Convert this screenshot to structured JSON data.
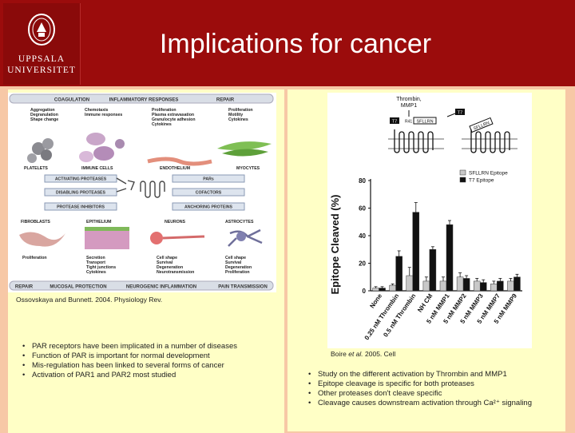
{
  "header": {
    "title": "Implications for cancer",
    "logo_line1": "UPPSALA",
    "logo_line2": "UNIVERSITET"
  },
  "colors": {
    "header": "#9b0c0c",
    "background": "#f7c8a6",
    "panel": "#ffffc6"
  },
  "left": {
    "citation": "Ossovskaya and Bunnett. 2004. Physiology Rev.",
    "bullets": [
      "PAR receptors have been implicated in a number of diseases",
      "Function of PAR is important for normal development",
      "Mis-regulation has been linked to several forms of cancer",
      "Activation of PAR1 and PAR2 most studied"
    ],
    "schematic": {
      "top_bar": [
        "COAGULATION",
        "INFLAMMATORY RESPONSES",
        "REPAIR"
      ],
      "col1": [
        "Aggregation",
        "Degranulation",
        "Shape change"
      ],
      "col2": [
        "Chemotaxis",
        "Immune responses"
      ],
      "col3": [
        "Proliferation",
        "Plasma extravasation",
        "Granulocyte adhesion",
        "Cytokines"
      ],
      "col4": [
        "Proliferation",
        "Motility",
        "Cytokines"
      ],
      "cells_top": [
        "PLATELETS",
        "IMMUNE CELLS",
        "ENDOTHELIUM",
        "MYOCYTES"
      ],
      "boxes_left": [
        "ACTIVATING PROTEASES",
        "DISABLING PROTEASES",
        "PROTEASE INHIBITORS"
      ],
      "boxes_right": [
        "PARs",
        "COFACTORS",
        "ANCHORING PROTEINS"
      ],
      "cells_bottom": [
        "FIBROBLASTS",
        "EPITHELIUM",
        "NEURONS",
        "ASTROCYTES"
      ],
      "b1": [
        "Proliferation"
      ],
      "b2": [
        "Secretion",
        "Transport",
        "Tight junctions",
        "Cytokines"
      ],
      "b3": [
        "Cell shape",
        "Survival",
        "Degeneration",
        "Neurotransmission"
      ],
      "b4": [
        "Cell shape",
        "Survival",
        "Degeneration",
        "Proliferation"
      ],
      "bottom_bar": [
        "REPAIR",
        "MUCOSAL PROTECTION",
        "NEUROGENIC INFLAMMATION",
        "PAIN TRANSMISSION"
      ]
    }
  },
  "right": {
    "citation_pre": "Boire ",
    "citation_italic": "et al.",
    "citation_post": " 2005. Cell",
    "bullets": [
      "Study on the different activation by Thrombin and MMP1",
      "Epitope cleavage is specific for both proteases",
      "Other proteases don't cleave specific",
      "Cleavage causes downstream activation through Ca²⁺ signaling"
    ],
    "diagram": {
      "enzyme_label_1": "Thrombin,",
      "enzyme_label_2": "MMP1",
      "tag_t7": "T7",
      "tag_seq": "SFLLRN",
      "tag_r41": "R41"
    }
  },
  "chart_data": {
    "type": "bar",
    "ylabel": "Epitope Cleaved (%)",
    "ylim": [
      0,
      80
    ],
    "yticks": [
      0,
      20,
      40,
      60,
      80
    ],
    "categories": [
      "None",
      "0.25 nM Thrombin",
      "0.5 nM Thrombin",
      "NH CM",
      "5 nM MMP1",
      "5 nM MMP2",
      "5 nM MMP3",
      "5 nM MMP7",
      "5 nM MMP9"
    ],
    "series": [
      {
        "name": "SFLLRN Epitope",
        "color": "#c8c8c8",
        "values": [
          2,
          4,
          11,
          7,
          7,
          10,
          7,
          5,
          7
        ]
      },
      {
        "name": "T7 Epitope",
        "color": "#111111",
        "values": [
          2,
          25,
          57,
          30,
          48,
          9,
          6,
          7,
          10
        ]
      }
    ],
    "errors": [
      [
        1,
        1,
        6,
        3,
        3,
        3,
        2,
        2,
        2
      ],
      [
        1,
        4,
        7,
        2,
        3,
        2,
        2,
        2,
        2
      ]
    ]
  }
}
